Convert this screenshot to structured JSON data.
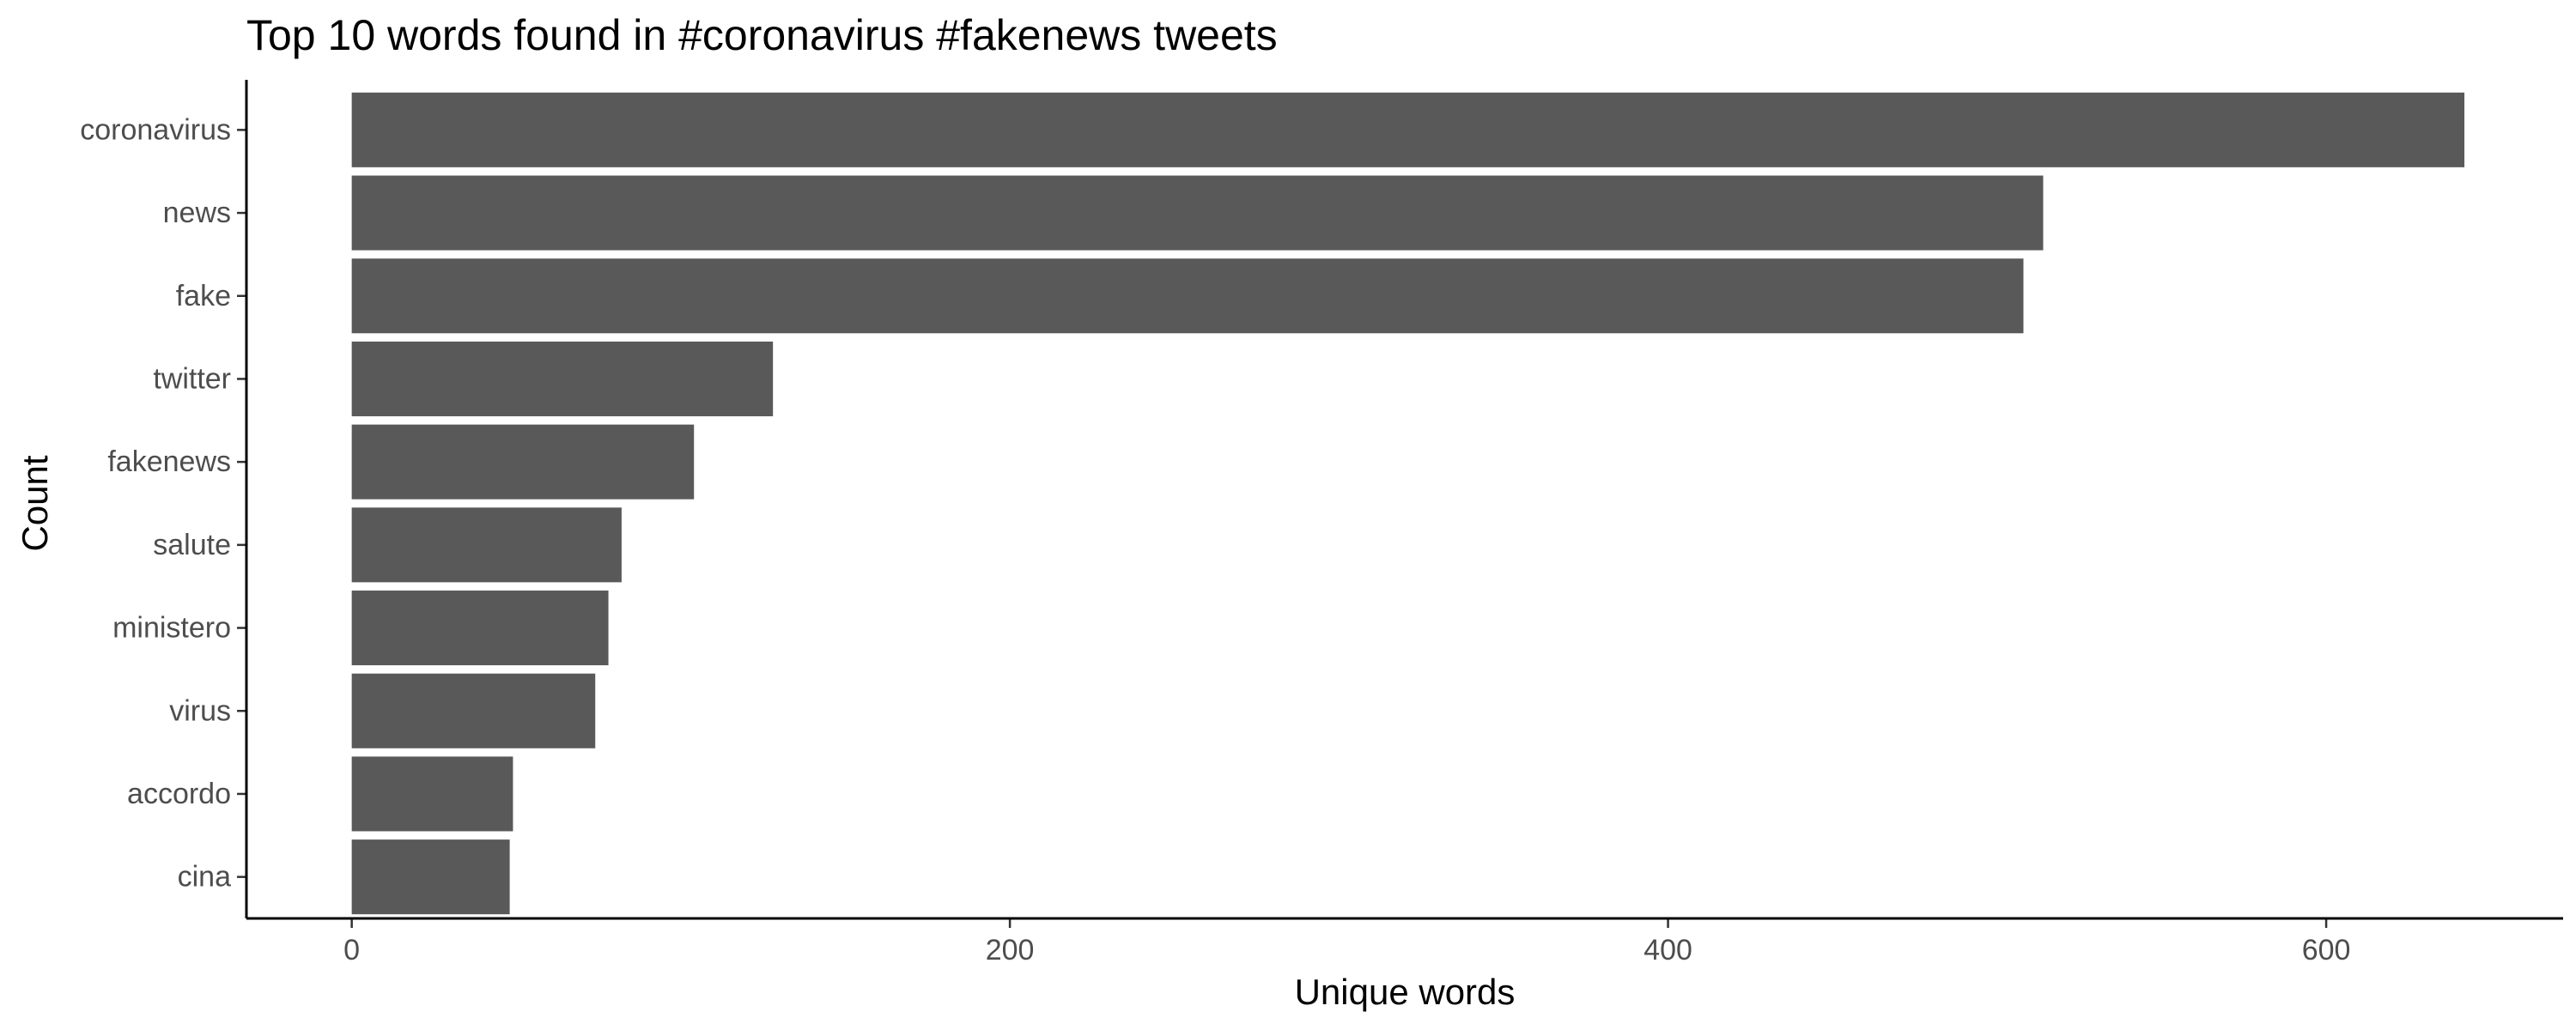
{
  "chart_data": {
    "type": "bar",
    "orientation": "horizontal",
    "title": "Top 10 words found in #coronavirus #fakenews tweets",
    "xlabel": "Unique words",
    "ylabel": "Count",
    "categories": [
      "coronavirus",
      "news",
      "fake",
      "twitter",
      "fakenews",
      "salute",
      "ministero",
      "virus",
      "accordo",
      "cina"
    ],
    "values": [
      642,
      514,
      508,
      128,
      104,
      82,
      78,
      74,
      49,
      48
    ],
    "xlim": [
      -32,
      672
    ],
    "xticks": [
      0,
      200,
      400,
      600
    ],
    "bar_color": "#595959",
    "grid": false,
    "legend": "none"
  }
}
